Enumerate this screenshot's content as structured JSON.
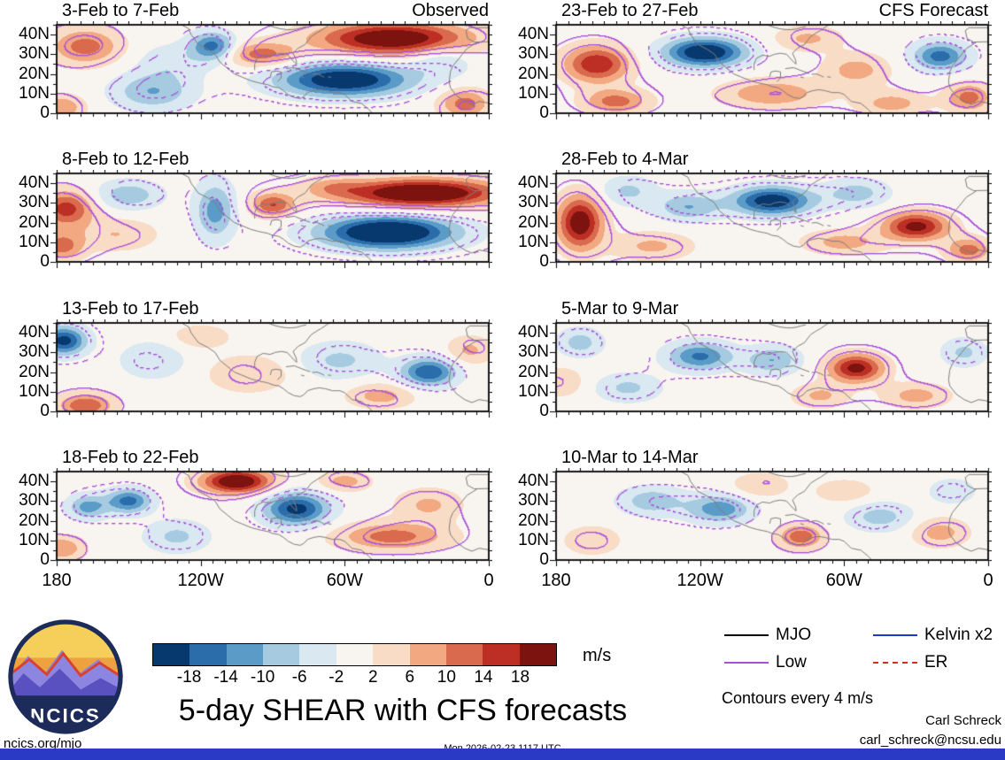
{
  "title": "5-day SHEAR with CFS forecasts",
  "logo": {
    "text": "NCICS"
  },
  "footer": {
    "left": "ncics.org/mjo",
    "center": "Mon 2026-02-23 1117 UTC",
    "credit_name": "Carl Schreck",
    "credit_email": "carl_schreck@ncsu.edu",
    "bottom_bar_color": "#2a3ac4"
  },
  "colorbar": {
    "units": "m/s",
    "tick_labels": [
      "-18",
      "-14",
      "-10",
      "-6",
      "-2",
      "2",
      "6",
      "10",
      "14",
      "18"
    ],
    "colors": [
      "#08396e",
      "#2b6cab",
      "#5a9bc8",
      "#a6cbe0",
      "#d9e8f1",
      "#f8f5f0",
      "#f9dcc6",
      "#f2a880",
      "#d96a4d",
      "#bd2f24",
      "#7c130e"
    ]
  },
  "legend": {
    "items": [
      {
        "label": "MJO",
        "color": "#000000",
        "dash": "solid"
      },
      {
        "label": "Low",
        "color": "#a94fd9",
        "dash": "solid"
      },
      {
        "label": "Kelvin x2",
        "color": "#1f35cc",
        "dash": "solid"
      },
      {
        "label": "ER",
        "color": "#dc2a1e",
        "dash": "dashed"
      }
    ],
    "note": "Contours every 4 m/s"
  },
  "chart_data": {
    "type": "filled_contour_map_grid",
    "units": "m/s",
    "contour_interval": 4,
    "lon_range_degW": [
      180,
      0
    ],
    "lat_range_degN": [
      0,
      45
    ],
    "x_tick_labels": [
      "180",
      "120W",
      "60W",
      "0"
    ],
    "y_tick_labels": [
      "40N",
      "30N",
      "20N",
      "10N",
      "0"
    ],
    "y_tick_lats": [
      40,
      30,
      20,
      10,
      0
    ],
    "fill_levels": [
      -18,
      -14,
      -10,
      -6,
      -2,
      2,
      6,
      10,
      14,
      18
    ],
    "panels": [
      {
        "title": "3-Feb to 7-Feb",
        "corner": "Observed",
        "column": "observed",
        "blobs": [
          [
            40,
            38,
            24,
            30,
            8
          ],
          [
            95,
            30,
            12,
            14,
            6
          ],
          [
            168,
            34,
            12,
            14,
            9
          ],
          [
            60,
            17,
            -24,
            26,
            8
          ],
          [
            115,
            34,
            -16,
            9,
            7
          ],
          [
            140,
            11,
            -10,
            16,
            9
          ],
          [
            10,
            5,
            12,
            10,
            7
          ],
          [
            178,
            3,
            10,
            9,
            6
          ],
          [
            132,
            26,
            -5,
            14,
            9
          ],
          [
            20,
            27,
            -6,
            12,
            8
          ]
        ]
      },
      {
        "title": "8-Feb to 12-Feb",
        "corner": "",
        "column": "observed",
        "blobs": [
          [
            28,
            35,
            26,
            32,
            7
          ],
          [
            42,
            15,
            -28,
            26,
            8
          ],
          [
            114,
            26,
            -12,
            8,
            14
          ],
          [
            90,
            29,
            14,
            9,
            6
          ],
          [
            176,
            27,
            16,
            11,
            9
          ],
          [
            178,
            8,
            12,
            9,
            7
          ],
          [
            150,
            34,
            -9,
            13,
            7
          ],
          [
            155,
            14,
            6,
            16,
            8
          ],
          [
            65,
            38,
            6,
            12,
            5
          ]
        ]
      },
      {
        "title": "13-Feb to 17-Feb",
        "corner": "",
        "column": "observed",
        "blobs": [
          [
            177,
            36,
            -20,
            9,
            7
          ],
          [
            168,
            3,
            14,
            11,
            6
          ],
          [
            25,
            20,
            -18,
            11,
            7
          ],
          [
            62,
            26,
            -7,
            16,
            9
          ],
          [
            100,
            19,
            6,
            16,
            9
          ],
          [
            140,
            26,
            -6,
            13,
            9
          ],
          [
            45,
            8,
            8,
            13,
            6
          ],
          [
            8,
            31,
            7,
            9,
            7
          ],
          [
            120,
            38,
            5,
            12,
            6
          ]
        ]
      },
      {
        "title": "18-Feb to 22-Feb",
        "corner": "",
        "column": "observed",
        "blobs": [
          [
            105,
            40,
            24,
            14,
            6
          ],
          [
            80,
            26,
            -20,
            13,
            8
          ],
          [
            150,
            30,
            -16,
            9,
            6
          ],
          [
            167,
            27,
            -12,
            8,
            6
          ],
          [
            40,
            12,
            12,
            22,
            7
          ],
          [
            178,
            6,
            10,
            9,
            6
          ],
          [
            25,
            28,
            7,
            13,
            8
          ],
          [
            130,
            12,
            -7,
            13,
            8
          ],
          [
            60,
            40,
            8,
            10,
            5
          ]
        ]
      },
      {
        "title": "23-Feb to 27-Feb",
        "corner": "CFS Forecast",
        "column": "forecast",
        "blobs": [
          [
            163,
            25,
            18,
            13,
            9
          ],
          [
            118,
            31,
            -24,
            16,
            7
          ],
          [
            20,
            29,
            -16,
            11,
            7
          ],
          [
            155,
            6,
            12,
            13,
            6
          ],
          [
            90,
            10,
            10,
            20,
            7
          ],
          [
            55,
            22,
            8,
            13,
            8
          ],
          [
            8,
            8,
            12,
            9,
            7
          ],
          [
            75,
            38,
            7,
            13,
            6
          ],
          [
            40,
            5,
            8,
            14,
            6
          ]
        ]
      },
      {
        "title": "28-Feb to 4-Mar",
        "corner": "",
        "column": "forecast",
        "blobs": [
          [
            170,
            20,
            22,
            9,
            13
          ],
          [
            90,
            31,
            -22,
            16,
            7
          ],
          [
            125,
            28,
            -10,
            13,
            7
          ],
          [
            30,
            18,
            20,
            13,
            7
          ],
          [
            8,
            6,
            12,
            9,
            6
          ],
          [
            140,
            8,
            7,
            16,
            7
          ],
          [
            55,
            35,
            -8,
            13,
            7
          ],
          [
            150,
            36,
            -7,
            11,
            7
          ],
          [
            60,
            10,
            8,
            16,
            6
          ]
        ]
      },
      {
        "title": "5-Mar to 9-Mar",
        "corner": "",
        "column": "forecast",
        "blobs": [
          [
            120,
            28,
            -15,
            13,
            7
          ],
          [
            55,
            22,
            20,
            11,
            7
          ],
          [
            90,
            26,
            -10,
            11,
            7
          ],
          [
            150,
            12,
            -7,
            13,
            7
          ],
          [
            170,
            35,
            -8,
            9,
            7
          ],
          [
            30,
            8,
            8,
            13,
            6
          ],
          [
            10,
            30,
            -7,
            9,
            7
          ],
          [
            70,
            8,
            7,
            11,
            6
          ],
          [
            178,
            15,
            6,
            9,
            7
          ]
        ]
      },
      {
        "title": "10-Mar to 14-Mar",
        "corner": "",
        "column": "forecast",
        "blobs": [
          [
            112,
            26,
            -13,
            13,
            7
          ],
          [
            78,
            12,
            13,
            9,
            6
          ],
          [
            140,
            30,
            -9,
            13,
            7
          ],
          [
            45,
            22,
            -8,
            13,
            7
          ],
          [
            20,
            14,
            8,
            11,
            7
          ],
          [
            165,
            10,
            6,
            11,
            7
          ],
          [
            95,
            38,
            6,
            11,
            6
          ],
          [
            15,
            35,
            -6,
            9,
            6
          ],
          [
            60,
            35,
            5,
            12,
            6
          ]
        ]
      }
    ],
    "coastlines": [
      [
        [
          128,
          45
        ],
        [
          125,
          43
        ],
        [
          124,
          40
        ],
        [
          121,
          35
        ],
        [
          117,
          32.5
        ],
        [
          114,
          30
        ],
        [
          112,
          26
        ],
        [
          109,
          23
        ],
        [
          106,
          20
        ],
        [
          103,
          18.5
        ],
        [
          99,
          16.5
        ],
        [
          96,
          15.5
        ],
        [
          94,
          15
        ],
        [
          92,
          14.5
        ],
        [
          90,
          13.5
        ],
        [
          87.5,
          13
        ],
        [
          85.5,
          11.5
        ],
        [
          83.5,
          9.5
        ],
        [
          81,
          8
        ],
        [
          78.5,
          7.5
        ],
        [
          77,
          8.5
        ],
        [
          75.5,
          10.5
        ],
        [
          73,
          11.5
        ],
        [
          70.5,
          12
        ],
        [
          68,
          11.5
        ],
        [
          65,
          10.5
        ],
        [
          62,
          10.5
        ],
        [
          60,
          9.5
        ],
        [
          57,
          6
        ],
        [
          53,
          5
        ],
        [
          50,
          2
        ],
        [
          48.5,
          0
        ]
      ],
      [
        [
          97.5,
          22
        ],
        [
          97.5,
          25
        ],
        [
          96.5,
          28
        ],
        [
          94,
          29.5
        ],
        [
          91,
          29
        ],
        [
          89,
          30
        ],
        [
          86.5,
          30.5
        ],
        [
          84,
          30
        ],
        [
          82.5,
          28
        ],
        [
          81,
          26
        ],
        [
          80,
          25
        ],
        [
          80.2,
          27
        ],
        [
          81.5,
          30.5
        ],
        [
          79.5,
          33
        ],
        [
          76.5,
          35
        ],
        [
          74,
          39
        ],
        [
          71.5,
          41
        ],
        [
          70,
          42
        ],
        [
          67,
          44.5
        ],
        [
          66,
          45
        ]
      ],
      [
        [
          91,
          18.5
        ],
        [
          90.5,
          21
        ],
        [
          88.5,
          21.5
        ],
        [
          86.5,
          21
        ],
        [
          86.5,
          18
        ],
        [
          88,
          16
        ]
      ],
      [
        [
          84.5,
          22.7
        ],
        [
          81,
          23.2
        ],
        [
          77.5,
          21.5
        ],
        [
          74.5,
          20.2
        ]
      ],
      [
        [
          73.5,
          19.8
        ],
        [
          71.5,
          20
        ],
        [
          69.5,
          19
        ],
        [
          68.5,
          18.3
        ]
      ],
      [
        [
          67,
          18.5
        ],
        [
          65.6,
          18.3
        ]
      ],
      [
        [
          78.2,
          18.5
        ],
        [
          76.8,
          18
        ]
      ],
      [
        [
          5,
          36
        ],
        [
          9,
          33
        ],
        [
          11,
          30
        ],
        [
          15,
          24
        ],
        [
          16,
          21
        ],
        [
          16.5,
          16
        ],
        [
          16,
          13
        ],
        [
          13.5,
          9
        ],
        [
          10,
          6
        ],
        [
          7,
          4.5
        ],
        [
          4,
          6
        ],
        [
          0,
          5.2
        ]
      ],
      [
        [
          0,
          43.5
        ],
        [
          8,
          43.5
        ],
        [
          9.5,
          42
        ],
        [
          8.8,
          38
        ],
        [
          6,
          36.2
        ],
        [
          0,
          36.4
        ]
      ],
      [
        [
          92,
          45
        ],
        [
          90,
          44
        ],
        [
          87,
          43
        ],
        [
          84,
          42.5
        ],
        [
          82,
          42.5
        ],
        [
          80,
          42.8
        ],
        [
          78,
          43.5
        ],
        [
          76,
          44
        ]
      ]
    ]
  }
}
